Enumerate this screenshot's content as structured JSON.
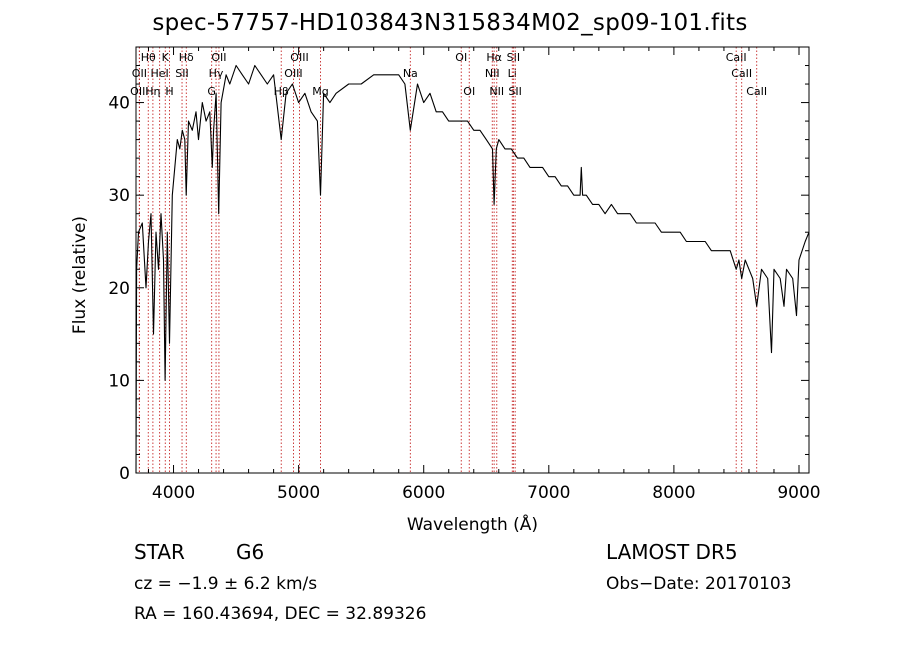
{
  "title": "spec-57757-HD103843N315834M02_sp09-101.fits",
  "info": {
    "class": "STAR",
    "subclass": "G6",
    "survey": "LAMOST DR5",
    "cz": "cz = −1.9 ± 6.2 km/s",
    "obs_date": "Obs−Date: 20170103",
    "radec": "RA = 160.43694, DEC =  32.89326"
  },
  "colors": {
    "line": "#000000",
    "marker": "#c62828",
    "axis": "#000000"
  },
  "chart_data": {
    "type": "line",
    "xlabel": "Wavelength (Å)",
    "ylabel": "Flux (relative)",
    "xlim": [
      3700,
      9080
    ],
    "ylim": [
      0,
      46
    ],
    "xticks": [
      4000,
      5000,
      6000,
      7000,
      8000,
      9000
    ],
    "yticks": [
      0,
      10,
      20,
      30,
      40
    ],
    "series": [
      {
        "x": [
          3700,
          3705,
          3720,
          3750,
          3780,
          3800,
          3820,
          3840,
          3860,
          3880,
          3900,
          3920,
          3933,
          3950,
          3968,
          3990,
          4010,
          4030,
          4050,
          4070,
          4090,
          4101,
          4120,
          4150,
          4180,
          4200,
          4230,
          4260,
          4290,
          4310,
          4320,
          4340,
          4361,
          4380,
          4420,
          4450,
          4500,
          4550,
          4600,
          4650,
          4700,
          4750,
          4800,
          4861,
          4900,
          4950,
          5000,
          5050,
          5100,
          5150,
          5175,
          5200,
          5250,
          5300,
          5400,
          5500,
          5600,
          5700,
          5800,
          5850,
          5893,
          5950,
          6000,
          6050,
          6100,
          6150,
          6200,
          6250,
          6300,
          6350,
          6400,
          6450,
          6500,
          6550,
          6563,
          6580,
          6600,
          6650,
          6700,
          6750,
          6800,
          6850,
          6900,
          6950,
          7000,
          7050,
          7100,
          7150,
          7200,
          7250,
          7260,
          7270,
          7300,
          7350,
          7400,
          7450,
          7500,
          7550,
          7600,
          7650,
          7700,
          7750,
          7800,
          7850,
          7900,
          7950,
          8000,
          8050,
          8100,
          8150,
          8200,
          8250,
          8300,
          8350,
          8400,
          8450,
          8498,
          8520,
          8542,
          8570,
          8600,
          8630,
          8662,
          8700,
          8750,
          8780,
          8800,
          8850,
          8880,
          8900,
          8950,
          8980,
          9000,
          9050,
          9080
        ],
        "y": [
          0,
          22,
          26,
          27,
          20,
          25,
          28,
          15,
          26,
          22,
          28,
          23,
          10,
          26,
          14,
          30,
          33,
          36,
          35,
          37,
          36,
          30,
          38,
          37,
          39,
          36,
          40,
          38,
          39,
          33,
          37,
          41,
          28,
          40,
          43,
          42,
          44,
          43,
          42,
          44,
          43,
          42,
          43,
          36,
          41,
          42,
          40,
          41,
          39,
          38,
          30,
          41,
          40,
          41,
          42,
          42,
          43,
          43,
          43,
          42,
          37,
          42,
          40,
          41,
          39,
          39,
          38,
          38,
          38,
          38,
          37,
          37,
          36,
          35,
          29,
          35,
          36,
          35,
          35,
          34,
          34,
          33,
          33,
          33,
          32,
          32,
          31,
          31,
          30,
          30,
          33,
          30,
          30,
          29,
          29,
          28,
          29,
          28,
          28,
          28,
          27,
          27,
          27,
          27,
          26,
          26,
          26,
          26,
          25,
          25,
          25,
          25,
          24,
          24,
          24,
          24,
          22,
          23,
          21,
          23,
          22,
          21,
          18,
          22,
          21,
          13,
          22,
          21,
          18,
          22,
          21,
          17,
          23,
          25,
          26
        ]
      }
    ],
    "line_markers": [
      {
        "label": "Hθ",
        "x": 3798,
        "row": 0
      },
      {
        "label": "K",
        "x": 3934,
        "row": 0
      },
      {
        "label": "Hδ",
        "x": 4102,
        "row": 0
      },
      {
        "label": "OII",
        "x": 4363,
        "row": 0
      },
      {
        "label": "OIII",
        "x": 5007,
        "row": 0
      },
      {
        "label": "OI",
        "x": 6300,
        "row": 0
      },
      {
        "label": "Hα",
        "x": 6563,
        "row": 0
      },
      {
        "label": "SII",
        "x": 6717,
        "row": 0
      },
      {
        "label": "CaII",
        "x": 8498,
        "row": 0
      },
      {
        "label": "OII",
        "x": 3727,
        "row": 1
      },
      {
        "label": "HeI",
        "x": 3889,
        "row": 1
      },
      {
        "label": "SII",
        "x": 4068,
        "row": 1
      },
      {
        "label": "Hγ",
        "x": 4340,
        "row": 1
      },
      {
        "label": "OIII",
        "x": 4959,
        "row": 1
      },
      {
        "label": "Na",
        "x": 5893,
        "row": 1
      },
      {
        "label": "NII",
        "x": 6548,
        "row": 1
      },
      {
        "label": "Li",
        "x": 6708,
        "row": 1
      },
      {
        "label": "CaII",
        "x": 8542,
        "row": 1
      },
      {
        "label": "OIII",
        "x": 3727,
        "row": 2
      },
      {
        "label": "Hη",
        "x": 3835,
        "row": 2
      },
      {
        "label": "H",
        "x": 3968,
        "row": 2
      },
      {
        "label": "G",
        "x": 4305,
        "row": 2
      },
      {
        "label": "Hβ",
        "x": 4861,
        "row": 2
      },
      {
        "label": "Mg",
        "x": 5175,
        "row": 2
      },
      {
        "label": "OI",
        "x": 6364,
        "row": 2
      },
      {
        "label": "NII",
        "x": 6584,
        "row": 2
      },
      {
        "label": "SII",
        "x": 6731,
        "row": 2
      },
      {
        "label": "CaII",
        "x": 8662,
        "row": 2
      }
    ]
  }
}
